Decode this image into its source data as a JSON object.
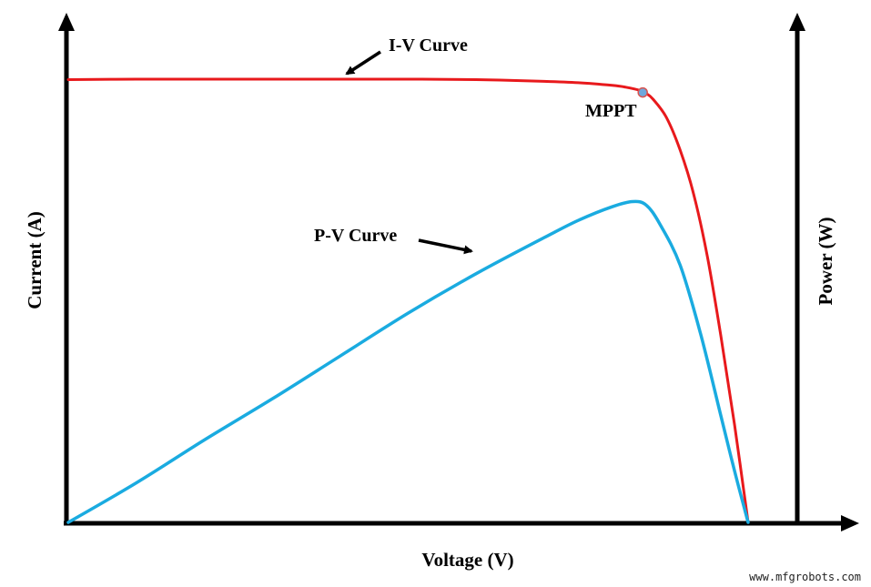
{
  "chart_data": {
    "type": "line",
    "title": "",
    "xlabel": "Voltage (V)",
    "ylabel": "Current (A)",
    "y2label": "Power (W)",
    "axis_ticks": "none",
    "grid": false,
    "legend": "none",
    "xlim": [
      0,
      1
    ],
    "ylim": [
      0,
      1
    ],
    "series": [
      {
        "name": "I-V Curve",
        "color": "#e8191c",
        "axis": "left",
        "x": [
          0,
          0.1,
          0.2,
          0.3,
          0.4,
          0.5,
          0.6,
          0.7,
          0.75,
          0.8,
          0.82,
          0.84,
          0.85,
          0.86,
          0.88,
          0.9,
          0.92,
          0.94,
          0.96,
          0.98,
          1.0
        ],
        "y": [
          0.999,
          1.0,
          1.0,
          1.0,
          1.0,
          1.0,
          0.999,
          0.995,
          0.992,
          0.986,
          0.982,
          0.975,
          0.968,
          0.955,
          0.913,
          0.84,
          0.74,
          0.6,
          0.42,
          0.22,
          0.0
        ]
      },
      {
        "name": "P-V Curve",
        "color": "#1aabe0",
        "axis": "right",
        "x": [
          0,
          0.1,
          0.2,
          0.3,
          0.4,
          0.5,
          0.6,
          0.7,
          0.75,
          0.8,
          0.83,
          0.85,
          0.87,
          0.9,
          0.93,
          0.96,
          0.98,
          1.0
        ],
        "y": [
          0,
          0.115,
          0.24,
          0.36,
          0.485,
          0.61,
          0.725,
          0.83,
          0.88,
          0.92,
          0.935,
          0.925,
          0.87,
          0.75,
          0.55,
          0.31,
          0.15,
          0
        ]
      }
    ],
    "annotations": [
      {
        "text": "I-V Curve",
        "target": "I-V Curve"
      },
      {
        "text": "P-V Curve",
        "target": "P-V Curve"
      },
      {
        "text": "MPPT",
        "x": 0.845,
        "y": 0.97
      }
    ],
    "mppt": {
      "x": 0.845,
      "y": 0.97
    }
  },
  "watermark": "www.mfgrobots.com"
}
